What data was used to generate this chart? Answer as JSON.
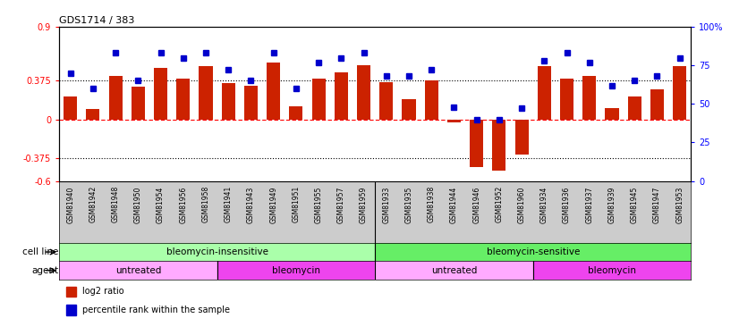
{
  "title": "GDS1714 / 383",
  "samples": [
    "GSM81940",
    "GSM81942",
    "GSM81948",
    "GSM81950",
    "GSM81954",
    "GSM81956",
    "GSM81958",
    "GSM81941",
    "GSM81943",
    "GSM81949",
    "GSM81951",
    "GSM81955",
    "GSM81957",
    "GSM81959",
    "GSM81933",
    "GSM81935",
    "GSM81938",
    "GSM81944",
    "GSM81946",
    "GSM81952",
    "GSM81960",
    "GSM81934",
    "GSM81936",
    "GSM81937",
    "GSM81939",
    "GSM81945",
    "GSM81947",
    "GSM81953"
  ],
  "log2_ratio": [
    0.22,
    0.1,
    0.42,
    0.32,
    0.5,
    0.4,
    0.52,
    0.35,
    0.33,
    0.55,
    0.13,
    0.4,
    0.46,
    0.53,
    0.36,
    0.2,
    0.38,
    -0.03,
    -0.46,
    -0.5,
    -0.34,
    0.52,
    0.4,
    0.42,
    0.11,
    0.22,
    0.29,
    0.52
  ],
  "percentile_raw": [
    70,
    60,
    83,
    65,
    83,
    80,
    83,
    72,
    65,
    83,
    60,
    77,
    80,
    83,
    68,
    68,
    72,
    48,
    40,
    40,
    47,
    78,
    83,
    77,
    62,
    65,
    68,
    80
  ],
  "ylim_left": [
    -0.6,
    0.9
  ],
  "yticks_left": [
    -0.6,
    -0.375,
    0.0,
    0.375,
    0.9
  ],
  "ytick_labels_left": [
    "-0.6",
    "-0.375",
    "0",
    "0.375",
    "0.9"
  ],
  "hlines": [
    0.375,
    -0.375
  ],
  "bar_color": "#cc2200",
  "percentile_color": "#0000cc",
  "background_color": "#ffffff",
  "cell_line_groups": [
    {
      "label": "bleomycin-insensitive",
      "start": 0,
      "end": 14,
      "color": "#aaffaa"
    },
    {
      "label": "bleomycin-sensitive",
      "start": 14,
      "end": 28,
      "color": "#66ee66"
    }
  ],
  "agent_groups": [
    {
      "label": "untreated",
      "start": 0,
      "end": 7,
      "color": "#ffaaff"
    },
    {
      "label": "bleomycin",
      "start": 7,
      "end": 14,
      "color": "#ee44ee"
    },
    {
      "label": "untreated",
      "start": 14,
      "end": 21,
      "color": "#ffaaff"
    },
    {
      "label": "bleomycin",
      "start": 21,
      "end": 28,
      "color": "#ee44ee"
    }
  ],
  "legend_items": [
    {
      "label": "log2 ratio",
      "color": "#cc2200"
    },
    {
      "label": "percentile rank within the sample",
      "color": "#0000cc"
    }
  ],
  "tick_bg_color": "#cccccc"
}
